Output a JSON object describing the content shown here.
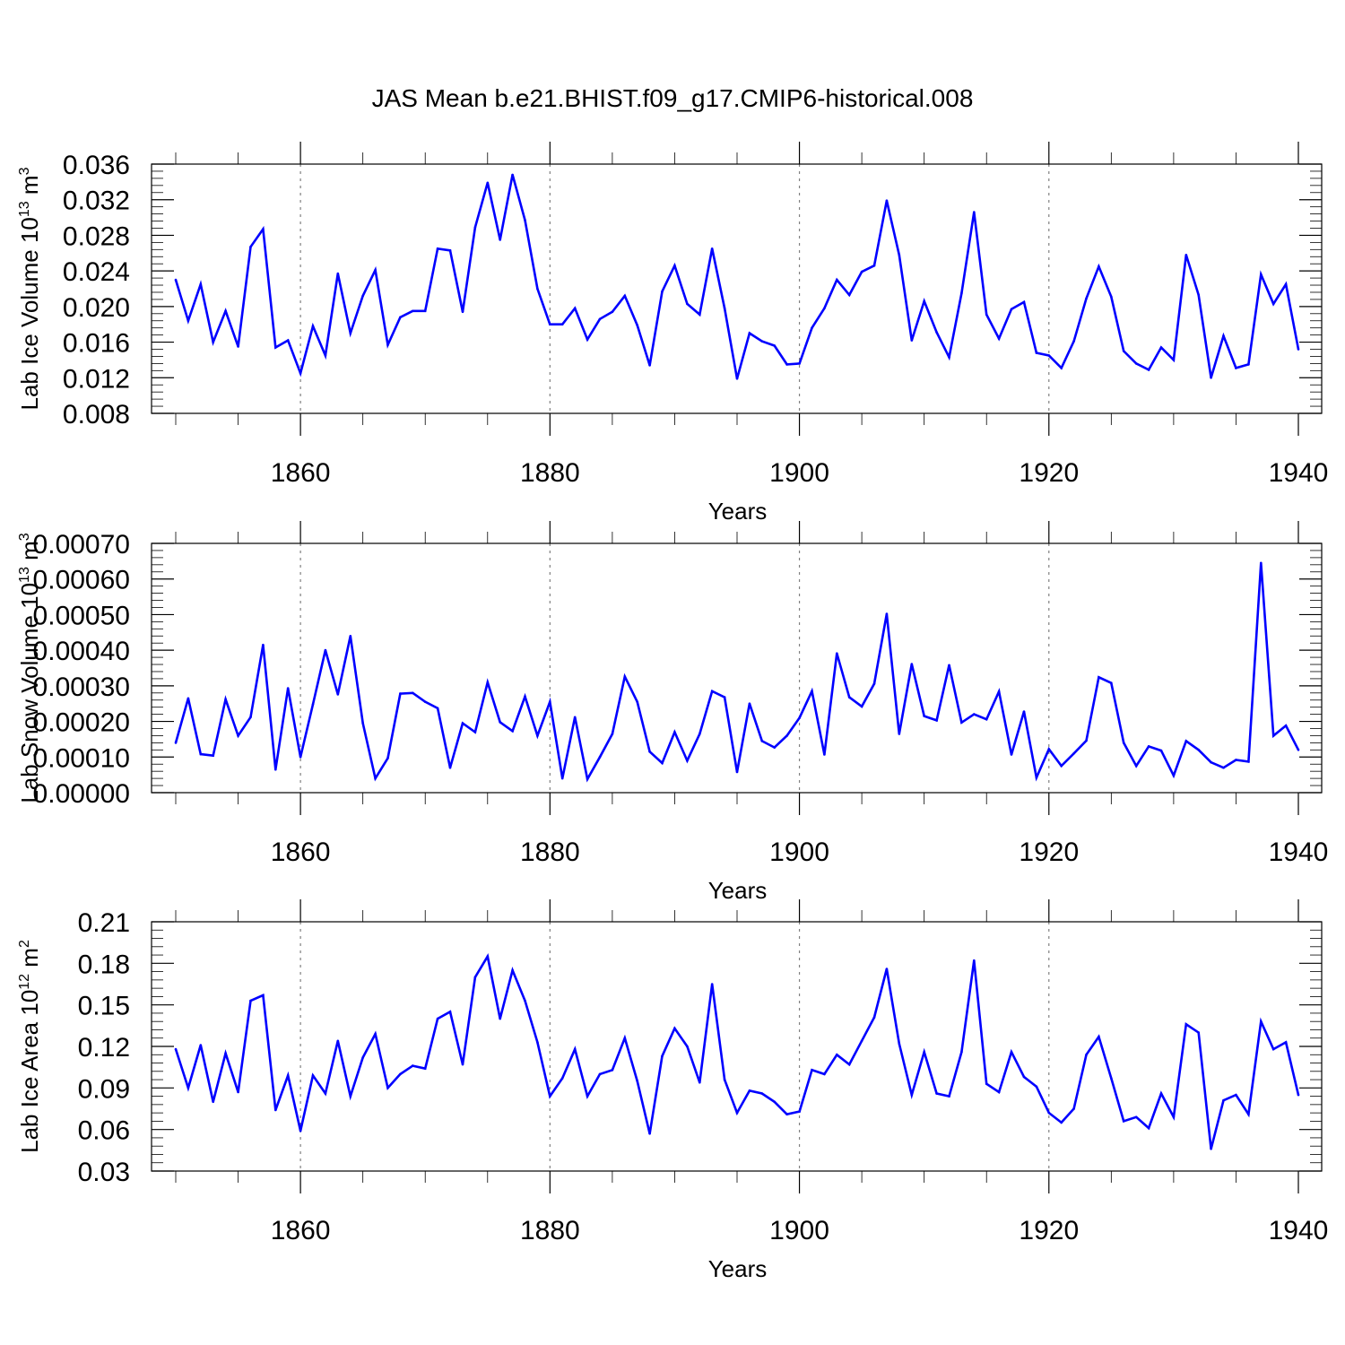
{
  "title": "JAS Mean b.e21.BHIST.f09_g17.CMIP6-historical.008",
  "colors": {
    "line": "#0000ff",
    "grid": "#808080",
    "axes": "#000000"
  },
  "chart_data": [
    {
      "type": "line",
      "name": "lab-ice-volume",
      "ylabel_main": "Lab Ice Volume 10",
      "ylabel_exp": "13",
      "ylabel_unit": " m",
      "ylabel_unit_exp": "3",
      "xlabel": "Years",
      "xlim": [
        1850,
        1940
      ],
      "ylim": [
        0.008,
        0.036
      ],
      "xticks": [
        1860,
        1880,
        1900,
        1920,
        1940
      ],
      "xtick_labels": [
        "1860",
        "1880",
        "1900",
        "1920",
        "1940"
      ],
      "yticks": [
        0.008,
        0.012,
        0.016,
        0.02,
        0.024,
        0.028,
        0.032,
        0.036
      ],
      "ytick_labels": [
        "0.008",
        "0.012",
        "0.016",
        "0.020",
        "0.024",
        "0.028",
        "0.032",
        "0.036"
      ],
      "grid_x": [
        1860,
        1880,
        1900,
        1920
      ],
      "x": [
        1850,
        1851,
        1852,
        1853,
        1854,
        1855,
        1856,
        1857,
        1858,
        1859,
        1860,
        1861,
        1862,
        1863,
        1864,
        1865,
        1866,
        1867,
        1868,
        1869,
        1870,
        1871,
        1872,
        1873,
        1874,
        1875,
        1876,
        1877,
        1878,
        1879,
        1880,
        1881,
        1882,
        1883,
        1884,
        1885,
        1886,
        1887,
        1888,
        1889,
        1890,
        1891,
        1892,
        1893,
        1894,
        1895,
        1896,
        1897,
        1898,
        1899,
        1900,
        1901,
        1902,
        1903,
        1904,
        1905,
        1906,
        1907,
        1908,
        1909,
        1910,
        1911,
        1912,
        1913,
        1914,
        1915,
        1916,
        1917,
        1918,
        1919,
        1920,
        1921,
        1922,
        1923,
        1924,
        1925,
        1926,
        1927,
        1928,
        1929,
        1930,
        1931,
        1932,
        1933,
        1934,
        1935,
        1936,
        1937,
        1938,
        1939,
        1940
      ],
      "values": [
        0.023,
        0.0184,
        0.0225,
        0.016,
        0.0195,
        0.0155,
        0.0267,
        0.0287,
        0.0154,
        0.0162,
        0.0125,
        0.0178,
        0.0145,
        0.0237,
        0.017,
        0.0212,
        0.0241,
        0.0157,
        0.0188,
        0.0195,
        0.0195,
        0.0265,
        0.0263,
        0.0194,
        0.0289,
        0.0339,
        0.0275,
        0.0348,
        0.0297,
        0.022,
        0.018,
        0.018,
        0.0198,
        0.0163,
        0.0186,
        0.0194,
        0.0212,
        0.0179,
        0.0134,
        0.0217,
        0.0246,
        0.0203,
        0.0191,
        0.0265,
        0.0198,
        0.0119,
        0.017,
        0.0161,
        0.0156,
        0.0135,
        0.0136,
        0.0176,
        0.0198,
        0.023,
        0.0213,
        0.0239,
        0.0246,
        0.0319,
        0.0258,
        0.0162,
        0.0206,
        0.0171,
        0.0143,
        0.0215,
        0.0306,
        0.0191,
        0.0164,
        0.0197,
        0.0205,
        0.0148,
        0.0145,
        0.0131,
        0.0161,
        0.0209,
        0.0245,
        0.0211,
        0.015,
        0.0136,
        0.0129,
        0.0154,
        0.014,
        0.0258,
        0.0213,
        0.012,
        0.0167,
        0.0131,
        0.0135,
        0.0236,
        0.0203,
        0.0225,
        0.0152
      ]
    },
    {
      "type": "line",
      "name": "lab-snow-volume",
      "ylabel_main": "Lab Snow Volume 10",
      "ylabel_exp": "13",
      "ylabel_unit": " m",
      "ylabel_unit_exp": "3",
      "xlabel": "Years",
      "xlim": [
        1850,
        1940
      ],
      "ylim": [
        0.0,
        0.0007
      ],
      "xticks": [
        1860,
        1880,
        1900,
        1920,
        1940
      ],
      "xtick_labels": [
        "1860",
        "1880",
        "1900",
        "1920",
        "1940"
      ],
      "yticks": [
        0.0,
        0.0001,
        0.0002,
        0.0003,
        0.0004,
        0.0005,
        0.0006,
        0.0007
      ],
      "ytick_labels": [
        "0.00000",
        "0.00010",
        "0.00020",
        "0.00030",
        "0.00040",
        "0.00050",
        "0.00060",
        "0.00070"
      ],
      "grid_x": [
        1860,
        1880,
        1900,
        1920
      ],
      "x": [
        1850,
        1851,
        1852,
        1853,
        1854,
        1855,
        1856,
        1857,
        1858,
        1859,
        1860,
        1861,
        1862,
        1863,
        1864,
        1865,
        1866,
        1867,
        1868,
        1869,
        1870,
        1871,
        1872,
        1873,
        1874,
        1875,
        1876,
        1877,
        1878,
        1879,
        1880,
        1881,
        1882,
        1883,
        1884,
        1885,
        1886,
        1887,
        1888,
        1889,
        1890,
        1891,
        1892,
        1893,
        1894,
        1895,
        1896,
        1897,
        1898,
        1899,
        1900,
        1901,
        1902,
        1903,
        1904,
        1905,
        1906,
        1907,
        1908,
        1909,
        1910,
        1911,
        1912,
        1913,
        1914,
        1915,
        1916,
        1917,
        1918,
        1919,
        1920,
        1921,
        1922,
        1923,
        1924,
        1925,
        1926,
        1927,
        1928,
        1929,
        1930,
        1931,
        1932,
        1933,
        1934,
        1935,
        1936,
        1937,
        1938,
        1939,
        1940
      ],
      "values": [
        0.00014,
        0.000265,
        0.000108,
        0.000104,
        0.000262,
        0.00016,
        0.000212,
        0.000415,
        6.5e-05,
        0.000293,
        0.0001,
        0.000248,
        0.0004,
        0.000276,
        0.00044,
        0.000195,
        4e-05,
        9.7e-05,
        0.000278,
        0.00028,
        0.000255,
        0.000237,
        7e-05,
        0.000195,
        0.00017,
        0.00031,
        0.000198,
        0.000173,
        0.00027,
        0.00016,
        0.000255,
        4e-05,
        0.000212,
        3.8e-05,
        0.0001,
        0.000165,
        0.000326,
        0.000255,
        0.000115,
        8.3e-05,
        0.00017,
        9e-05,
        0.000165,
        0.000285,
        0.000268,
        5.8e-05,
        0.00025,
        0.000145,
        0.000127,
        0.00016,
        0.00021,
        0.000285,
        0.000107,
        0.000391,
        0.000268,
        0.000242,
        0.000306,
        0.000502,
        0.000165,
        0.000361,
        0.000215,
        0.000203,
        0.000358,
        0.000197,
        0.00022,
        0.000206,
        0.000284,
        0.000107,
        0.000228,
        4.2e-05,
        0.000122,
        7.5e-05,
        0.00011,
        0.000146,
        0.000324,
        0.000308,
        0.00014,
        7.5e-05,
        0.00013,
        0.000118,
        4.8e-05,
        0.000145,
        0.00012,
        8.5e-05,
        7e-05,
        9.2e-05,
        8.7e-05,
        0.000645,
        0.00016,
        0.000188,
        0.00012
      ]
    },
    {
      "type": "line",
      "name": "lab-ice-area",
      "ylabel_main": "Lab Ice Area 10",
      "ylabel_exp": "12",
      "ylabel_unit": " m",
      "ylabel_unit_exp": "2",
      "xlabel": "Years",
      "xlim": [
        1850,
        1940
      ],
      "ylim": [
        0.03,
        0.21
      ],
      "xticks": [
        1860,
        1880,
        1900,
        1920,
        1940
      ],
      "xtick_labels": [
        "1860",
        "1880",
        "1900",
        "1920",
        "1940"
      ],
      "yticks": [
        0.03,
        0.06,
        0.09,
        0.12,
        0.15,
        0.18,
        0.21
      ],
      "ytick_labels": [
        "0.03",
        "0.06",
        "0.09",
        "0.12",
        "0.15",
        "0.18",
        "0.21"
      ],
      "grid_x": [
        1860,
        1880,
        1900,
        1920
      ],
      "x": [
        1850,
        1851,
        1852,
        1853,
        1854,
        1855,
        1856,
        1857,
        1858,
        1859,
        1860,
        1861,
        1862,
        1863,
        1864,
        1865,
        1866,
        1867,
        1868,
        1869,
        1870,
        1871,
        1872,
        1873,
        1874,
        1875,
        1876,
        1877,
        1878,
        1879,
        1880,
        1881,
        1882,
        1883,
        1884,
        1885,
        1886,
        1887,
        1888,
        1889,
        1890,
        1891,
        1892,
        1893,
        1894,
        1895,
        1896,
        1897,
        1898,
        1899,
        1900,
        1901,
        1902,
        1903,
        1904,
        1905,
        1906,
        1907,
        1908,
        1909,
        1910,
        1911,
        1912,
        1913,
        1914,
        1915,
        1916,
        1917,
        1918,
        1919,
        1920,
        1921,
        1922,
        1923,
        1924,
        1925,
        1926,
        1927,
        1928,
        1929,
        1930,
        1931,
        1932,
        1933,
        1934,
        1935,
        1936,
        1937,
        1938,
        1939,
        1940
      ],
      "values": [
        0.118,
        0.09,
        0.121,
        0.08,
        0.115,
        0.087,
        0.153,
        0.157,
        0.074,
        0.099,
        0.059,
        0.099,
        0.086,
        0.124,
        0.084,
        0.112,
        0.129,
        0.09,
        0.1,
        0.106,
        0.104,
        0.14,
        0.145,
        0.107,
        0.17,
        0.185,
        0.14,
        0.175,
        0.153,
        0.123,
        0.084,
        0.097,
        0.118,
        0.084,
        0.1,
        0.103,
        0.126,
        0.095,
        0.057,
        0.113,
        0.133,
        0.12,
        0.094,
        0.165,
        0.096,
        0.072,
        0.088,
        0.086,
        0.08,
        0.071,
        0.073,
        0.103,
        0.1,
        0.114,
        0.107,
        0.124,
        0.141,
        0.176,
        0.122,
        0.085,
        0.116,
        0.086,
        0.084,
        0.116,
        0.182,
        0.093,
        0.087,
        0.116,
        0.098,
        0.091,
        0.072,
        0.065,
        0.075,
        0.114,
        0.127,
        0.097,
        0.066,
        0.069,
        0.061,
        0.086,
        0.069,
        0.136,
        0.13,
        0.046,
        0.081,
        0.085,
        0.071,
        0.138,
        0.118,
        0.123,
        0.085
      ]
    }
  ]
}
